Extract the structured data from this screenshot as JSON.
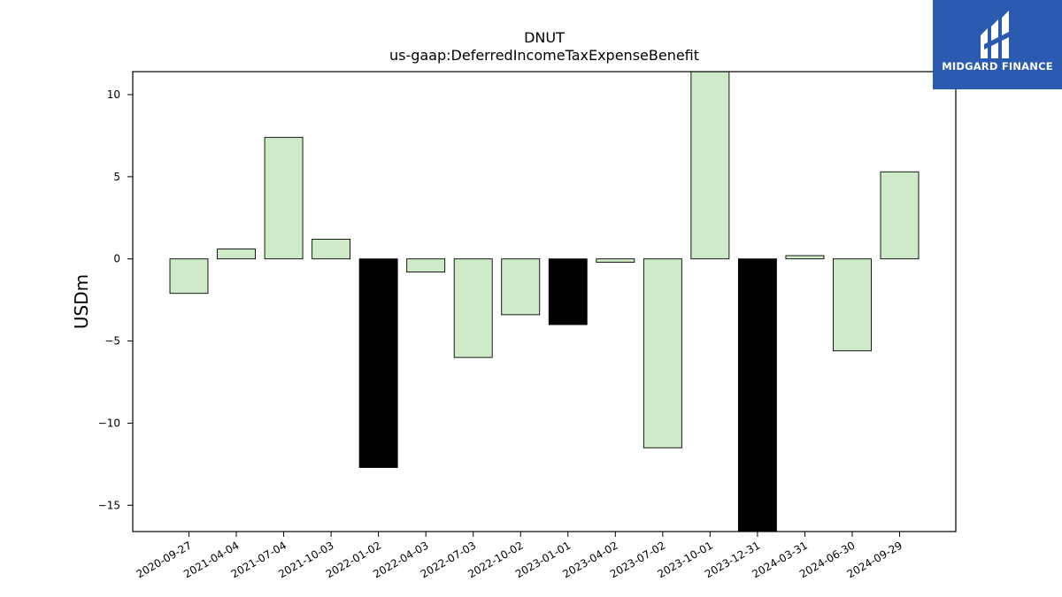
{
  "brand": {
    "name": "MIDGARD FINANCE",
    "bg_color": "#2a5bb0",
    "icon": "midgard-logo-icon"
  },
  "chart_data": {
    "type": "bar",
    "title": "DNUT",
    "subtitle": "us-gaap:DeferredIncomeTaxExpenseBenefit",
    "xlabel": "",
    "ylabel": "USDm",
    "ylim": [
      -16.6,
      11.4
    ],
    "yticks": [
      10,
      5,
      0,
      -5,
      -10,
      -15
    ],
    "ytick_labels": [
      "10",
      "5",
      "0",
      "−5",
      "−10",
      "−15"
    ],
    "grid": false,
    "categories": [
      "2020-09-27",
      "2021-04-04",
      "2021-07-04",
      "2021-10-03",
      "2022-01-02",
      "2022-04-03",
      "2022-07-03",
      "2022-10-02",
      "2023-01-01",
      "2023-04-02",
      "2023-07-02",
      "2023-10-01",
      "2023-12-31",
      "2024-03-31",
      "2024-06-30",
      "2024-09-29"
    ],
    "values": [
      -2.1,
      0.6,
      7.4,
      1.2,
      -12.7,
      -0.8,
      -6.0,
      -3.4,
      -4.0,
      -0.2,
      -11.5,
      12.2,
      -17.0,
      0.2,
      -5.6,
      5.3
    ],
    "highlight": [
      false,
      false,
      false,
      false,
      true,
      false,
      false,
      false,
      true,
      false,
      false,
      false,
      true,
      false,
      false,
      false
    ],
    "colors": {
      "bar": "#cfeac8",
      "highlight": "#000000",
      "edge": "#000000"
    }
  }
}
